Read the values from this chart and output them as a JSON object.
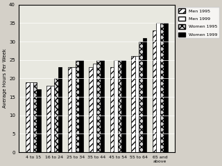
{
  "categories": [
    "4 to 15",
    "16 to 24",
    "25 to 34",
    "35 to 44",
    "45 to 54",
    "55 to 64",
    "65 and\nabove"
  ],
  "men_1995": [
    19,
    18,
    23,
    23,
    23,
    26,
    33
  ],
  "men_1999": [
    19,
    18,
    23,
    24,
    25,
    26,
    35
  ],
  "women_1995": [
    19,
    20,
    25,
    25,
    25,
    30,
    35
  ],
  "women_1999": [
    17,
    23,
    25,
    25,
    25,
    31,
    35
  ],
  "ylabel": "Average Hours Per Week",
  "ylim": [
    0,
    40
  ],
  "yticks": [
    0,
    5,
    10,
    15,
    20,
    25,
    30,
    35,
    40
  ],
  "legend": [
    "Men 1995",
    "Men 1999",
    "Women 1995",
    "Women 1999"
  ],
  "bg_color": "#e8e8e0",
  "bar_width": 0.18
}
